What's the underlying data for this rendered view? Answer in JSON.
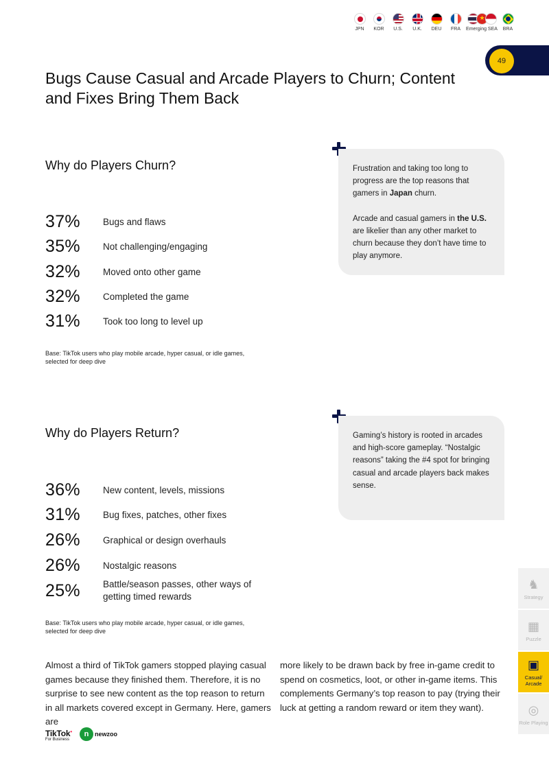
{
  "header": {
    "flags": [
      {
        "code": "JPN",
        "icon": "japan-flag"
      },
      {
        "code": "KOR",
        "icon": "korea-flag"
      },
      {
        "code": "U.S.",
        "icon": "us-flag"
      },
      {
        "code": "U.K.",
        "icon": "uk-flag"
      },
      {
        "code": "DEU",
        "icon": "germany-flag"
      },
      {
        "code": "FRA",
        "icon": "france-flag"
      },
      {
        "code": "Emerging SEA",
        "icon": "sea-flags"
      },
      {
        "code": "BRA",
        "icon": "brazil-flag"
      }
    ],
    "page_number": "49",
    "colors": {
      "navy": "#0b1446",
      "yellow": "#f7c600",
      "callout_bg": "#eeeeee"
    }
  },
  "title": "Bugs Cause Casual and Arcade Players to Churn; Content and Fixes Bring Them Back",
  "churn": {
    "heading": "Why do Players Churn?",
    "stats": [
      {
        "pct": "37%",
        "label": "Bugs and flaws"
      },
      {
        "pct": "35%",
        "label": "Not challenging/engaging"
      },
      {
        "pct": "32%",
        "label": "Moved onto other game"
      },
      {
        "pct": "32%",
        "label": "Completed the game"
      },
      {
        "pct": "31%",
        "label": "Took too long to level up"
      }
    ],
    "base": "Base: TikTok users who play mobile arcade, hyper casual, or idle games, selected for deep dive",
    "callout": {
      "p1_pre": "Frustration and taking too long to progress are the top reasons that gamers in ",
      "p1_bold": "Japan",
      "p1_post": " churn.",
      "p2_pre": "Arcade and casual gamers in ",
      "p2_bold": "the U.S.",
      "p2_post": " are likelier than any other market to churn because they don’t have time to play anymore."
    }
  },
  "return": {
    "heading": "Why do Players Return?",
    "stats": [
      {
        "pct": "36%",
        "label": "New content, levels, missions"
      },
      {
        "pct": "31%",
        "label": "Bug fixes, patches, other fixes"
      },
      {
        "pct": "26%",
        "label": "Graphical or design overhauls"
      },
      {
        "pct": "26%",
        "label": "Nostalgic reasons"
      },
      {
        "pct": "25%",
        "label": "Battle/season passes, other ways of getting timed rewards"
      }
    ],
    "base": "Base: TikTok users who play mobile arcade, hyper casual, or idle games, selected for deep dive",
    "callout": {
      "text": "Gaming’s history is rooted in arcades and high-score gameplay. “Nostalgic reasons” taking the #4 spot for bringing casual and arcade players back makes sense."
    }
  },
  "body": {
    "col1": "Almost a third of TikTok gamers stopped playing casual games because they finished them. Therefore, it is no surprise to see new content as the top reason to return in all markets covered except in Germany. Here, gamers are",
    "col2": "more likely to be drawn back by free in-game credit to spend on cosmetics, loot, or other in-game items. This complements Germany’s top reason to pay (trying their luck at getting a random reward or item they want)."
  },
  "side_nav": [
    {
      "label": "Strategy",
      "icon": "chess-knight-icon",
      "active": false
    },
    {
      "label": "Puzzle",
      "icon": "puzzle-grid-icon",
      "active": false
    },
    {
      "label": "Casual/ Arcade",
      "icon": "arcade-icon",
      "active": true
    },
    {
      "label": "Role Playing",
      "icon": "role-playing-icon",
      "active": false
    }
  ],
  "footer": {
    "tiktok_brand": "TikTok",
    "tiktok_sub": "For Business",
    "newzoo_brand": "newzoo"
  }
}
